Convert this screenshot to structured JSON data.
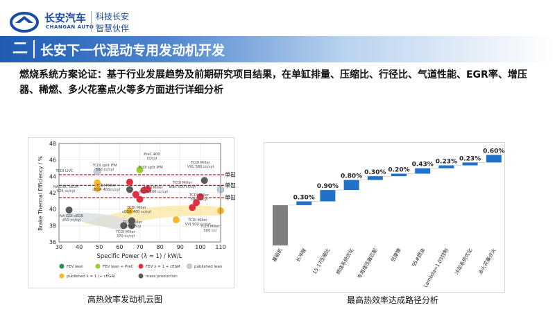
{
  "header": {
    "brand_cn": "长安汽车",
    "brand_en": "CHANGAN AUTO",
    "slogan_line1": "科技长安",
    "slogan_line2": "智慧伙伴",
    "logo_icon": "changan-logo-icon",
    "brand_color": "#1b4ca3"
  },
  "section": {
    "number": "二",
    "title": "长安下一代混动专用发动机开发"
  },
  "description": "燃烧系统方案论证：基于行业发展趋势及前期研究项目结果，在单缸排量、压缩比、行径比、气道性能、EGR率、增压器、稀燃、多火花塞点火等多方面进行详细分析",
  "left_figure": {
    "caption": "高热效率发动机云图",
    "ylabel": "Brake Thermal Efficiency / %",
    "xlabel": "Specific Power (λ = 1) / kW/L",
    "displacement_labels": [
      "单缸0.66L",
      "单缸0.5L",
      "单缸0.4L"
    ],
    "legend": [
      "FEV lean",
      "FEV lean + PreC",
      "FEV λ = 1 + cEGR",
      "published lean",
      "published λ = 1 (+ cEGR)",
      "mass production"
    ],
    "annotations": [
      "TCDI LIVC",
      "TCDI split IFM 500 cc/cyl",
      "PreC 400 cc/cyl",
      "TCDI split IFM",
      "TCDI Miller VVL 580 cc/cyl",
      "NA LIVC cEGR 625 cc/cyl",
      "TCDI Miller cEGR 400cc/cyl",
      "TCDI Miller cEGR 500 cc/cyl",
      "TCDI Miller lean 500 cc/cyl",
      "TCDI Miller 500cc/cyl",
      "NA GDI cEGR 450 cc/cyl",
      "TCDI Miller cEGR 400 cc/cyl",
      "TCDI Miller 500cc/cyl",
      "TCDI Miller VVI 500 cc/cyl",
      "TCDI Miller 500 cc/",
      "TCDI Miller 370 cc/cyl"
    ],
    "colors": {
      "fev_lean": "#2e8b57",
      "fev_lean_prec": "#9acd32",
      "fev_egr": "#e03040",
      "published_lean": "#c0ccd8",
      "published_lambda1": "#f5b82a",
      "mass_production": "#5a5a5a",
      "guide_line": "#c8102e"
    }
  },
  "right_figure": {
    "caption": "最高热效率达成路径分析"
  },
  "chart_data": [
    {
      "type": "scatter",
      "title": "",
      "xlabel": "Specific Power (λ = 1) / kW/L",
      "ylabel": "Brake Thermal Efficiency / %",
      "xlim": [
        30,
        110
      ],
      "ylim": [
        36,
        48
      ],
      "x_ticks": [
        30,
        40,
        50,
        60,
        70,
        80,
        90,
        100,
        110
      ],
      "y_ticks": [
        36,
        38,
        40,
        42,
        44,
        46,
        48
      ],
      "reference_lines": [
        {
          "label": "单缸0.66L",
          "y": 44.2
        },
        {
          "label": "单缸0.5L",
          "y": 42.9
        },
        {
          "label": "单缸0.4L",
          "y": 41.4
        }
      ],
      "series": [
        {
          "name": "FEV lean",
          "points": []
        },
        {
          "name": "FEV lean + PreC",
          "points": [
            [
              70,
              44.8
            ]
          ]
        },
        {
          "name": "FEV λ = 1 + cEGR",
          "points": [
            [
              65,
              43.3
            ],
            [
              72,
              42.3
            ],
            [
              68,
              41.8
            ],
            [
              74,
              42.4
            ],
            [
              98,
              40.8
            ],
            [
              96,
              40.2
            ],
            [
              70,
              41.2
            ],
            [
              100,
              41.5
            ]
          ]
        },
        {
          "name": "published lean",
          "points": [
            [
              49,
              44.6
            ],
            [
              110,
              42.4
            ]
          ]
        },
        {
          "name": "published λ = 1 (+ cEGR)",
          "points": [
            [
              49,
              43.2
            ],
            [
              49,
              42.5
            ],
            [
              65,
              39.8
            ],
            [
              88,
              38.7
            ],
            [
              110,
              39.8
            ]
          ]
        },
        {
          "name": "mass production",
          "points": [
            [
              35,
              39.9
            ],
            [
              65,
              42.4
            ],
            [
              102,
              43.5
            ],
            [
              62,
              38.0
            ],
            [
              66,
              38.6
            ],
            [
              66,
              38.0
            ]
          ]
        }
      ],
      "legend_position": "bottom"
    },
    {
      "type": "bar",
      "subtype": "waterfall",
      "title": "",
      "categories": [
        "基础机",
        "长冲程",
        "15-17压缩比",
        "燃烧系统优化",
        "专用增压器匹配",
        "低摩擦",
        "95#燃油",
        "Lambda=1.03控制",
        "冷却系统优化",
        "多火花塞点火"
      ],
      "increments": [
        null,
        0.3,
        0.9,
        0.8,
        0.3,
        0.2,
        0.43,
        0.23,
        0.23,
        0.6
      ],
      "data_labels": [
        "",
        "0.30%",
        "0.90%",
        "0.80%",
        "0.30%",
        "0.20%",
        "0.43%",
        "0.23%",
        "0.23%",
        "0.60%"
      ],
      "base_value": 3.2,
      "ylim": [
        0,
        7.6
      ],
      "colors": {
        "base": "#7f7f7f",
        "increment": "#1f72c8"
      }
    }
  ]
}
